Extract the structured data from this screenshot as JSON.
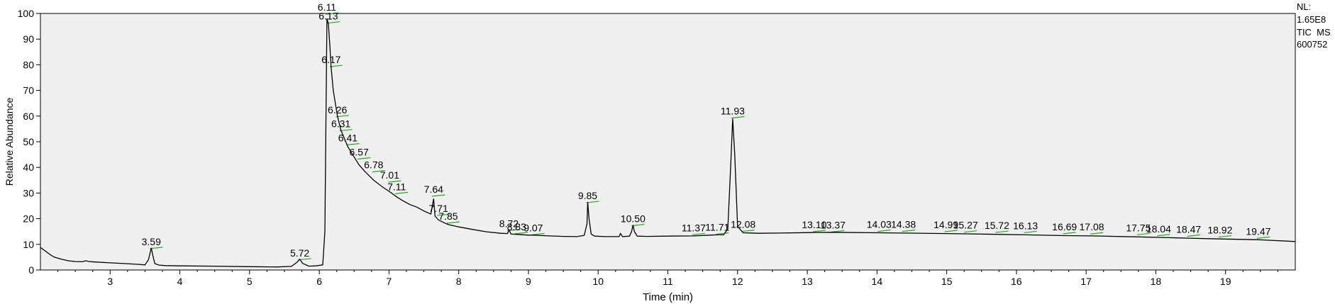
{
  "side_info": {
    "nl_label": "NL:",
    "nl_value": "1.65E8",
    "mode": "TIC  MS",
    "sample": "600752"
  },
  "chart_data": {
    "type": "line",
    "title": "",
    "xlabel": "Time (min)",
    "ylabel": "Relative Abundance",
    "xlim": [
      2.0,
      20.0
    ],
    "ylim": [
      0,
      100
    ],
    "x_ticks": [
      3,
      4,
      5,
      6,
      7,
      8,
      9,
      10,
      11,
      12,
      13,
      14,
      15,
      16,
      17,
      18,
      19
    ],
    "y_ticks": [
      0,
      10,
      20,
      30,
      40,
      50,
      60,
      70,
      80,
      90,
      100
    ],
    "grid": false,
    "series": [
      {
        "x": [
          2.0,
          2.05,
          2.1,
          2.15,
          2.2,
          2.3,
          2.4,
          2.5,
          2.6,
          2.65,
          2.7,
          2.8,
          3.0,
          3.2,
          3.4,
          3.5,
          3.55,
          3.58,
          3.59,
          3.61,
          3.64,
          3.7,
          3.8,
          4.0,
          4.5,
          5.0,
          5.4,
          5.6,
          5.68,
          5.72,
          5.76,
          5.85,
          5.95,
          6.05,
          6.08,
          6.1,
          6.11,
          6.13,
          6.15,
          6.17,
          6.2,
          6.26,
          6.31,
          6.41,
          6.5,
          6.57,
          6.65,
          6.78,
          6.9,
          7.01,
          7.11,
          7.2,
          7.3,
          7.4,
          7.5,
          7.6,
          7.64,
          7.66,
          7.71,
          7.8,
          7.85,
          8.0,
          8.2,
          8.4,
          8.6,
          8.7,
          8.72,
          8.75,
          8.83,
          9.0,
          9.07,
          9.3,
          9.5,
          9.7,
          9.8,
          9.84,
          9.85,
          9.87,
          9.9,
          9.95,
          10.1,
          10.3,
          10.32,
          10.35,
          10.45,
          10.48,
          10.5,
          10.52,
          10.56,
          10.7,
          11.0,
          11.37,
          11.6,
          11.71,
          11.8,
          11.86,
          11.9,
          11.93,
          11.96,
          12.0,
          12.08,
          12.3,
          12.6,
          13.1,
          13.37,
          14.03,
          14.38,
          14.99,
          15.27,
          15.72,
          16.13,
          16.69,
          17.08,
          17.75,
          18.04,
          18.47,
          18.92,
          19.47,
          20.0
        ],
        "values": [
          8.8,
          7.8,
          6.8,
          5.8,
          5.0,
          4.2,
          3.6,
          3.3,
          3.2,
          3.6,
          3.3,
          3.1,
          2.8,
          2.5,
          2.2,
          2.0,
          4.0,
          7.5,
          8.6,
          6.0,
          2.5,
          1.9,
          1.7,
          1.6,
          1.5,
          1.3,
          1.2,
          1.4,
          3.0,
          4.2,
          2.6,
          1.5,
          1.6,
          2.0,
          15.0,
          70.0,
          98.0,
          96.0,
          88.0,
          79.0,
          70.0,
          60.0,
          54.5,
          48.0,
          44.0,
          41.0,
          38.5,
          35.0,
          32.5,
          30.5,
          28.5,
          27.0,
          25.5,
          24.5,
          23.0,
          21.8,
          27.8,
          21.0,
          19.5,
          18.3,
          17.7,
          16.8,
          15.8,
          14.9,
          14.3,
          14.2,
          15.6,
          14.0,
          13.9,
          13.6,
          13.6,
          13.3,
          13.1,
          13.0,
          13.5,
          18.0,
          26.5,
          20.0,
          14.0,
          13.2,
          13.0,
          13.0,
          14.2,
          13.0,
          13.2,
          15.0,
          17.5,
          15.0,
          13.2,
          13.1,
          13.2,
          13.3,
          13.6,
          13.7,
          13.7,
          16.0,
          40.0,
          59.0,
          45.0,
          17.0,
          14.5,
          14.3,
          14.4,
          14.6,
          14.7,
          14.5,
          14.4,
          14.2,
          14.1,
          13.9,
          13.7,
          13.4,
          13.3,
          12.9,
          12.7,
          12.4,
          12.1,
          11.8,
          11.1
        ]
      }
    ],
    "peak_labels": [
      {
        "label": "3.59",
        "x": 3.59,
        "y": 8.6
      },
      {
        "label": "5.72",
        "x": 5.72,
        "y": 4.2
      },
      {
        "label": "6.11",
        "x": 6.11,
        "y": 100.0
      },
      {
        "label": "6.13",
        "x": 6.13,
        "y": 96.5
      },
      {
        "label": "6.17",
        "x": 6.17,
        "y": 79.5
      },
      {
        "label": "6.26",
        "x": 6.26,
        "y": 60.0
      },
      {
        "label": "6.31",
        "x": 6.31,
        "y": 54.5
      },
      {
        "label": "6.41",
        "x": 6.41,
        "y": 49.0
      },
      {
        "label": "6.57",
        "x": 6.57,
        "y": 43.5
      },
      {
        "label": "6.78",
        "x": 6.78,
        "y": 38.5
      },
      {
        "label": "7.01",
        "x": 7.01,
        "y": 34.5
      },
      {
        "label": "7.11",
        "x": 7.11,
        "y": 30.0
      },
      {
        "label": "7.64",
        "x": 7.64,
        "y": 29.0
      },
      {
        "label": "7.71",
        "x": 7.71,
        "y": 21.5
      },
      {
        "label": "7.85",
        "x": 7.85,
        "y": 18.5
      },
      {
        "label": "8.72",
        "x": 8.72,
        "y": 15.6
      },
      {
        "label": "8.83",
        "x": 8.83,
        "y": 14.4
      },
      {
        "label": "9.07",
        "x": 9.07,
        "y": 14.0
      },
      {
        "label": "9.85",
        "x": 9.85,
        "y": 26.5
      },
      {
        "label": "10.50",
        "x": 10.5,
        "y": 17.5
      },
      {
        "label": "11.37",
        "x": 11.37,
        "y": 14.0
      },
      {
        "label": "11.71",
        "x": 11.71,
        "y": 14.2
      },
      {
        "label": "11.93",
        "x": 11.93,
        "y": 59.5
      },
      {
        "label": "12.08",
        "x": 12.08,
        "y": 15.3
      },
      {
        "label": "13.10",
        "x": 13.1,
        "y": 15.2
      },
      {
        "label": "13.37",
        "x": 13.37,
        "y": 15.1
      },
      {
        "label": "14.03",
        "x": 14.03,
        "y": 15.3
      },
      {
        "label": "14.38",
        "x": 14.38,
        "y": 15.3
      },
      {
        "label": "14.99",
        "x": 14.99,
        "y": 15.2
      },
      {
        "label": "15.27",
        "x": 15.27,
        "y": 15.0
      },
      {
        "label": "15.72",
        "x": 15.72,
        "y": 14.9
      },
      {
        "label": "16.13",
        "x": 16.13,
        "y": 14.8
      },
      {
        "label": "16.69",
        "x": 16.69,
        "y": 14.4
      },
      {
        "label": "17.08",
        "x": 17.08,
        "y": 14.3
      },
      {
        "label": "17.75",
        "x": 17.75,
        "y": 14.0
      },
      {
        "label": "18.04",
        "x": 18.04,
        "y": 13.6
      },
      {
        "label": "18.47",
        "x": 18.47,
        "y": 13.4
      },
      {
        "label": "18.92",
        "x": 18.92,
        "y": 13.1
      },
      {
        "label": "19.47",
        "x": 19.47,
        "y": 12.6
      }
    ],
    "colors": {
      "plot_background": "#f0f0f0",
      "trace": "#000000",
      "label_marker": "#22aa22",
      "axis": "#000000"
    }
  }
}
